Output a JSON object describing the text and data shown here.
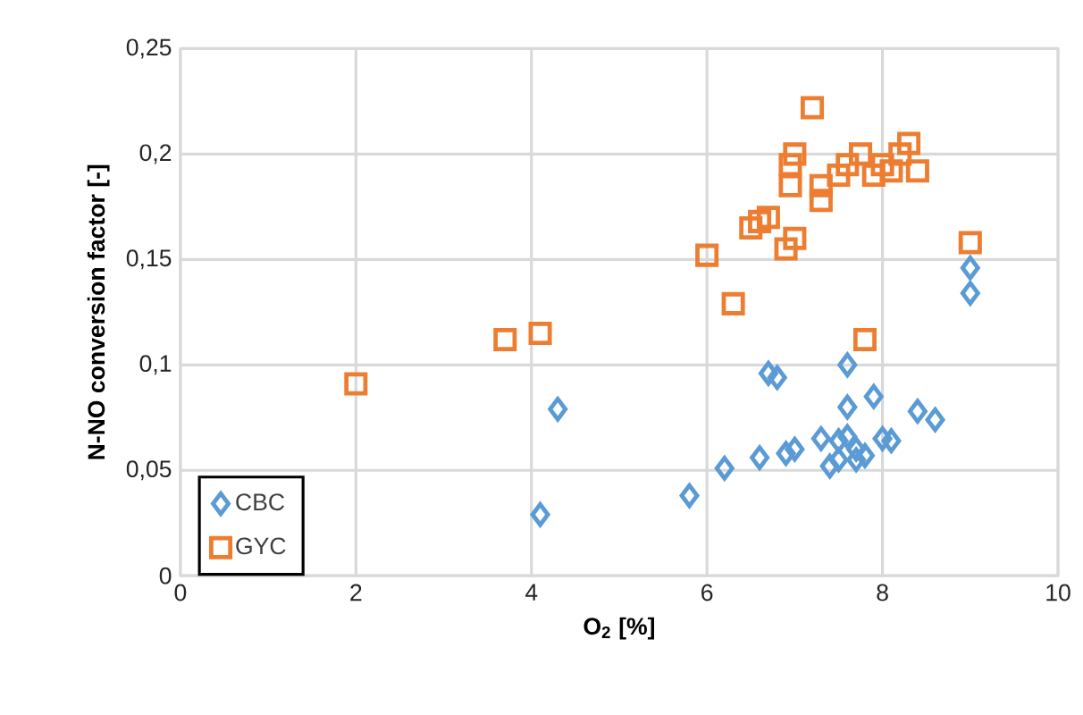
{
  "chart_data": {
    "type": "scatter",
    "xlabel": "O$_{2}$ [%]",
    "ylabel": "N-NO conversion factor [-]",
    "xlim": [
      0,
      10
    ],
    "ylim": [
      0,
      0.25
    ],
    "xticks": [
      0,
      2,
      4,
      6,
      8,
      10
    ],
    "yticks": [
      0,
      {
        "value": 0.05,
        "label": "0,05"
      },
      {
        "value": 0.1,
        "label": "0,1"
      },
      {
        "value": 0.15,
        "label": "0,15"
      },
      {
        "value": 0.2,
        "label": "0,2"
      },
      {
        "value": 0.25,
        "label": "0,25"
      }
    ],
    "grid": true,
    "legend": "bottom left",
    "series": [
      {
        "name": "CBC",
        "color": "#5b9bd5",
        "marker": "diamond",
        "x": [
          4.1,
          4.3,
          5.8,
          6.2,
          6.6,
          6.7,
          6.8,
          6.9,
          7.0,
          7.3,
          7.4,
          7.5,
          7.6,
          7.6,
          7.7,
          7.7,
          7.8,
          7.9,
          8.0,
          8.1,
          8.4,
          8.6,
          9.0,
          9.0,
          7.5,
          7.6
        ],
        "values": [
          0.029,
          0.079,
          0.038,
          0.051,
          0.056,
          0.096,
          0.094,
          0.058,
          0.06,
          0.065,
          0.052,
          0.055,
          0.1,
          0.08,
          0.055,
          0.06,
          0.057,
          0.085,
          0.065,
          0.064,
          0.078,
          0.074,
          0.146,
          0.134,
          0.064,
          0.066
        ]
      },
      {
        "name": "GYC",
        "color": "#ed7d31",
        "marker": "square",
        "x": [
          2.0,
          3.7,
          4.1,
          6.0,
          6.3,
          6.5,
          6.6,
          6.7,
          6.9,
          7.0,
          6.95,
          6.95,
          7.0,
          7.2,
          7.3,
          7.3,
          7.5,
          7.6,
          7.75,
          7.9,
          8.0,
          8.2,
          8.3,
          8.4,
          7.8,
          9.0,
          8.1
        ],
        "values": [
          0.091,
          0.112,
          0.115,
          0.152,
          0.129,
          0.165,
          0.168,
          0.17,
          0.155,
          0.16,
          0.195,
          0.185,
          0.2,
          0.222,
          0.178,
          0.185,
          0.19,
          0.195,
          0.2,
          0.19,
          0.195,
          0.2,
          0.205,
          0.192,
          0.112,
          0.158,
          0.192
        ]
      }
    ]
  }
}
